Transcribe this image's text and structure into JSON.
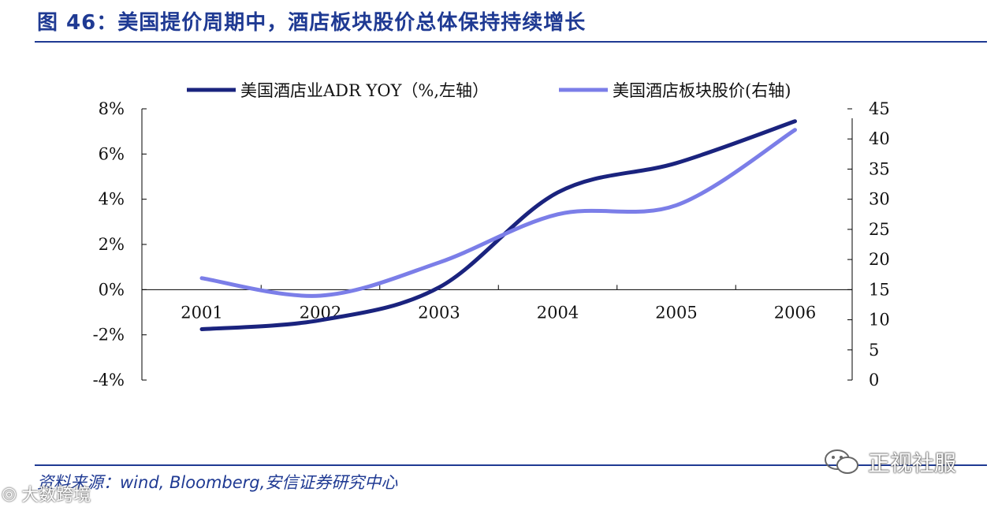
{
  "figure": {
    "title": "图 46：美国提价周期中，酒店板块股价总体保持持续增长",
    "source_label": "资料来源：",
    "source_value": "wind, Bloomberg,安信证券研究中心"
  },
  "watermark": {
    "text": "正视社服",
    "text2": "大数跨境"
  },
  "colors": {
    "title": "#1f3a93",
    "series_adr": "#1a237e",
    "series_price": "#7b7ee8",
    "axis": "#000000"
  },
  "chart_data": {
    "type": "line",
    "title": "",
    "categories": [
      "2001",
      "2002",
      "2003",
      "2004",
      "2005",
      "2006"
    ],
    "left_axis": {
      "ticks": [
        "8%",
        "6%",
        "4%",
        "2%",
        "0%",
        "-2%",
        "-4%"
      ],
      "tick_values": [
        8,
        6,
        4,
        2,
        0,
        -2,
        -4
      ],
      "range": [
        -4,
        8
      ]
    },
    "right_axis": {
      "ticks": [
        "45",
        "40",
        "35",
        "30",
        "25",
        "20",
        "15",
        "10",
        "5",
        "0"
      ],
      "tick_values": [
        45,
        40,
        35,
        30,
        25,
        20,
        15,
        10,
        5,
        0
      ],
      "range": [
        0,
        45
      ]
    },
    "series": [
      {
        "name": "美国酒店业ADR YOY（%,左轴）",
        "axis": "left",
        "values": [
          -1.75,
          -1.35,
          0.1,
          4.3,
          5.6,
          7.45
        ]
      },
      {
        "name": "美国酒店板块股价(右轴)",
        "axis": "right",
        "values": [
          16.9,
          14.0,
          19.5,
          27.5,
          29.0,
          41.5
        ]
      }
    ],
    "legend_position": "top"
  }
}
